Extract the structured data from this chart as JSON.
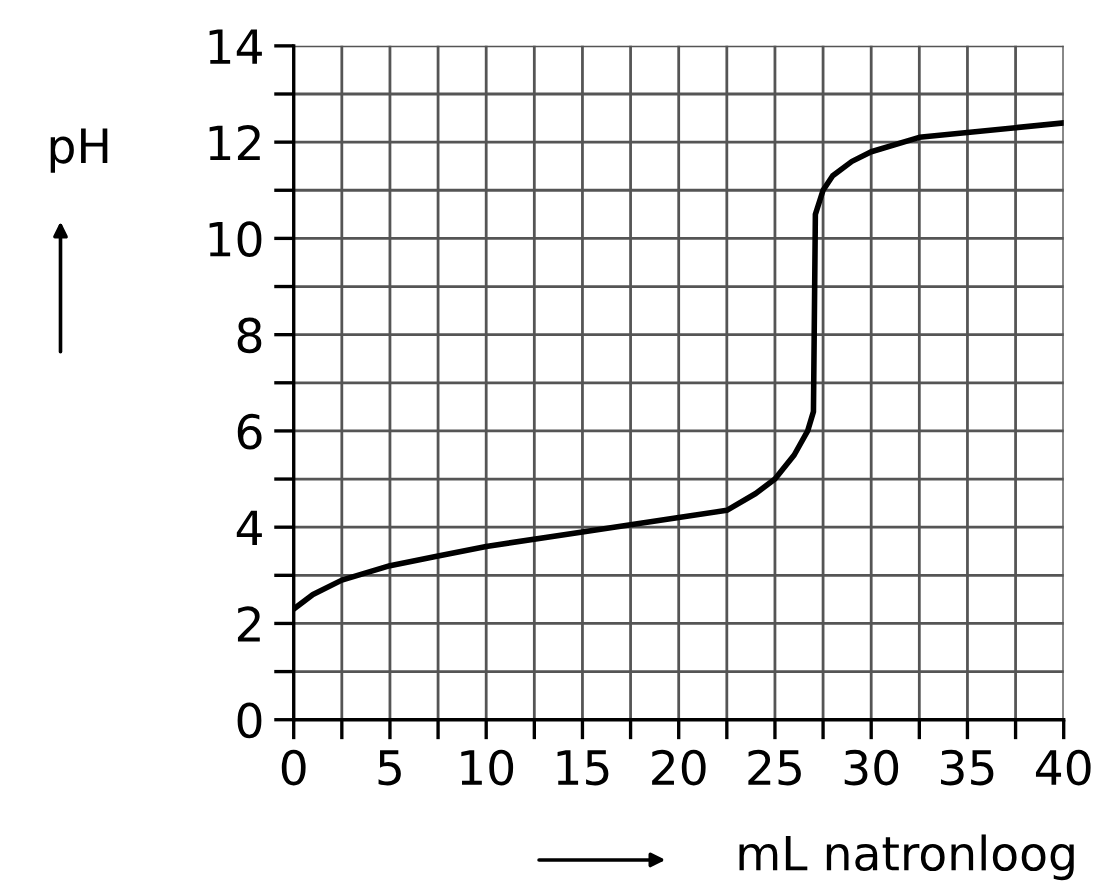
{
  "chart_data": {
    "type": "line",
    "xlabel": "mL natronloog",
    "ylabel": "pH",
    "series": [
      {
        "color": "#000000",
        "x": [
          0,
          1,
          2.5,
          5,
          7.5,
          10,
          15,
          20,
          22.5,
          24,
          25,
          26,
          26.7,
          27,
          27.1,
          27.5,
          28,
          29,
          30,
          32.5,
          35,
          37.5,
          40
        ],
        "values": [
          2.3,
          2.6,
          2.9,
          3.2,
          3.4,
          3.6,
          3.9,
          4.2,
          4.35,
          4.7,
          5.0,
          5.5,
          6.0,
          6.4,
          10.5,
          11.0,
          11.3,
          11.6,
          11.8,
          12.1,
          12.2,
          12.3,
          12.4
        ]
      }
    ],
    "xlim": [
      0,
      40
    ],
    "ylim": [
      0,
      14
    ],
    "xticks": [
      0,
      {
        "value": 2.5,
        "label": null
      },
      5,
      {
        "value": 7.5,
        "label": null
      },
      10,
      {
        "value": 12.5,
        "label": null
      },
      15,
      {
        "value": 17.5,
        "label": null
      },
      20,
      {
        "value": 22.5,
        "label": null
      },
      25,
      {
        "value": 27.5,
        "label": null
      },
      30,
      {
        "value": 32.5,
        "label": null
      },
      35,
      {
        "value": 37.5,
        "label": null
      },
      40
    ],
    "yticks": [
      0,
      {
        "value": 1,
        "label": null
      },
      2,
      {
        "value": 3,
        "label": null
      },
      4,
      {
        "value": 5,
        "label": null
      },
      6,
      {
        "value": 7,
        "label": null
      },
      8,
      {
        "value": 9,
        "label": null
      },
      10,
      {
        "value": 11,
        "label": null
      },
      12,
      {
        "value": 13,
        "label": null
      },
      14
    ],
    "grid": true,
    "marker": "none",
    "line_style": "solid",
    "legend": false
  }
}
